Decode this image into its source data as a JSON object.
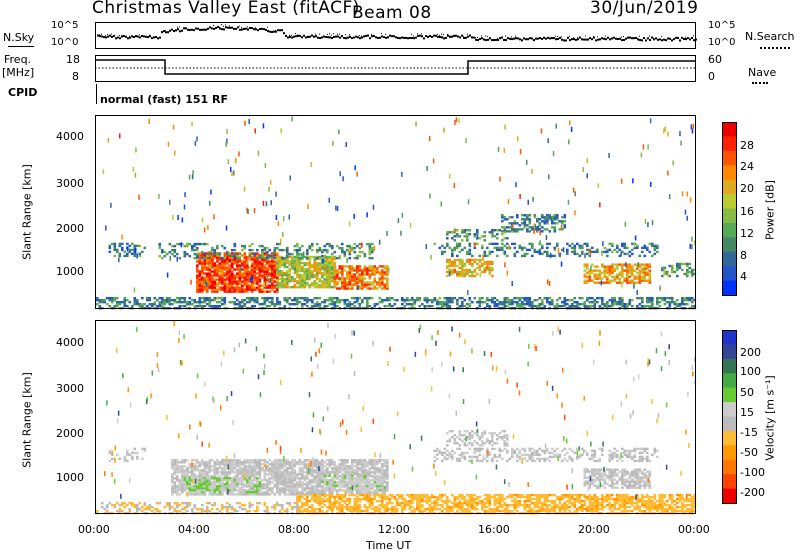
{
  "header": {
    "station": "Christmas Valley East (fitACF)",
    "beam": "Beam 08",
    "date": "30/Jun/2019"
  },
  "noise_panel": {
    "left_label": "N.Sky",
    "right_label": "N.Search",
    "left_ticks": [
      "10^5",
      "10^0"
    ],
    "right_ticks": [
      "10^5",
      "10^0"
    ]
  },
  "freq_panel": {
    "left_label_1": "Freq.",
    "left_label_2": "[MHz]",
    "right_label": "Nave",
    "left_ticks": [
      "18",
      "8"
    ],
    "right_ticks": [
      "60",
      "0"
    ]
  },
  "cpid": {
    "label": "CPID",
    "text": "normal (fast) 151 RF"
  },
  "chart_data": [
    {
      "type": "heatmap",
      "ylabel": "Slant Range [km]",
      "yticks": [
        "4000",
        "3000",
        "2000",
        "1000"
      ],
      "ylim": [
        180,
        4500
      ],
      "xlim_hours": [
        0,
        24
      ],
      "colorbar": {
        "label": "Power [dB]",
        "ticks": [
          "28",
          "24",
          "20",
          "16",
          "12",
          "8",
          "4"
        ],
        "range": [
          0,
          30
        ],
        "colors": [
          "#0033ff",
          "#2255cc",
          "#336699",
          "#448866",
          "#55aa55",
          "#88bb44",
          "#bbcc33",
          "#ddaa22",
          "#ff8800",
          "#ff5500",
          "#ff2200",
          "#ee0000"
        ]
      }
    },
    {
      "type": "heatmap",
      "ylabel": "Slant Range [km]",
      "yticks": [
        "4000",
        "3000",
        "2000",
        "1000"
      ],
      "ylim": [
        180,
        4500
      ],
      "xlabel": "Time UT",
      "xticks": [
        "00:00",
        "04:00",
        "08:00",
        "12:00",
        "16:00",
        "20:00",
        "00:00"
      ],
      "xlim_hours": [
        0,
        24
      ],
      "colorbar": {
        "label": "Velocity [m s⁻¹]",
        "ticks": [
          "200",
          "100",
          "50",
          "15",
          "-15",
          "-50",
          "-100",
          "-200"
        ],
        "range": [
          -250,
          250
        ],
        "colors": [
          "#ee0000",
          "#ff4400",
          "#ff7700",
          "#ff9900",
          "#ffbb33",
          "#bbbbbb",
          "#cccccc",
          "#66cc33",
          "#44aa44",
          "#337755",
          "#334499",
          "#2233cc"
        ]
      }
    }
  ]
}
